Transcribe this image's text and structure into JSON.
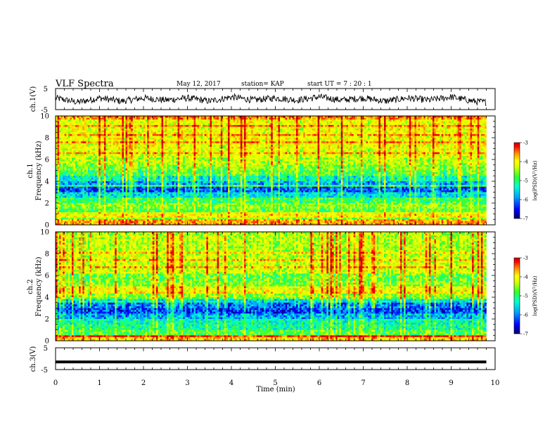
{
  "header": {
    "title": "VLF Spectra",
    "date": "May 12, 2017",
    "station": "station= KAP",
    "start": "start UT =  7 : 20 : 1"
  },
  "colors": {
    "background": "#ffffff",
    "axes": "#000000",
    "trace": "#000000",
    "colormap": [
      "#00006e",
      "#0000ff",
      "#00a0ff",
      "#00ffd0",
      "#30ff30",
      "#d8ff00",
      "#ffff00",
      "#ff9000",
      "#ff0000",
      "#c00000"
    ]
  },
  "chart_data": [
    {
      "id": "ch1-waveform",
      "type": "line",
      "ylabel": "ch.1(V)",
      "ylim": [
        -5,
        5
      ],
      "yticks": [
        "5",
        "-5"
      ],
      "xlim": [
        0,
        10
      ],
      "series": [
        {
          "x": [
            0,
            0.5,
            1,
            1.5,
            2,
            2.5,
            3,
            3.5,
            4,
            4.5,
            5,
            5.5,
            6,
            6.5,
            7,
            7.5,
            8,
            8.5,
            9,
            9.5,
            9.8
          ],
          "y": [
            0.5,
            -1.5,
            0.5,
            -1,
            0.5,
            -0.5,
            0.5,
            -1,
            1,
            -0.5,
            0.5,
            -0.5,
            1,
            -0.5,
            0.5,
            -1,
            0.5,
            -0.5,
            1,
            -1,
            -1.5
          ]
        }
      ]
    },
    {
      "id": "ch1-spectrogram",
      "type": "heatmap",
      "ylabel": "ch.1\nFrequency (kHz)",
      "xlim": [
        0,
        10
      ],
      "ylim": [
        0,
        10
      ],
      "yticks": [
        "0",
        "2",
        "4",
        "6",
        "8",
        "10"
      ],
      "data_extent_x": [
        0,
        9.8
      ],
      "colorbar": {
        "label": "log(PSD)(V²/Hz)",
        "range": [
          -7,
          -3
        ],
        "ticks": [
          "-3",
          "-4",
          "-5",
          "-6",
          "-7"
        ]
      },
      "frequency_profile_log_psd": [
        {
          "f": 0.25,
          "v": -4.0
        },
        {
          "f": 0.75,
          "v": -5.0
        },
        {
          "f": 1.25,
          "v": -5.2
        },
        {
          "f": 1.75,
          "v": -5.0
        },
        {
          "f": 2.25,
          "v": -5.3
        },
        {
          "f": 2.75,
          "v": -5.8
        },
        {
          "f": 3.25,
          "v": -6.3
        },
        {
          "f": 3.75,
          "v": -6.0
        },
        {
          "f": 4.25,
          "v": -5.6
        },
        {
          "f": 4.75,
          "v": -5.2
        },
        {
          "f": 5.25,
          "v": -5.0
        },
        {
          "f": 5.75,
          "v": -4.8
        },
        {
          "f": 6.5,
          "v": -4.6
        },
        {
          "f": 7.5,
          "v": -4.5
        },
        {
          "f": 8.5,
          "v": -4.5
        },
        {
          "f": 9.5,
          "v": -4.5
        }
      ]
    },
    {
      "id": "ch2-spectrogram",
      "type": "heatmap",
      "ylabel": "ch.2\nFrequency (kHz)",
      "xlim": [
        0,
        10
      ],
      "ylim": [
        0,
        10
      ],
      "yticks": [
        "0",
        "2",
        "4",
        "6",
        "8",
        "10"
      ],
      "data_extent_x": [
        0,
        9.8
      ],
      "colorbar": {
        "label": "log(PSD)(V²/Hz)",
        "range": [
          -7,
          -3
        ],
        "ticks": [
          "-3",
          "-4",
          "-5",
          "-6",
          "-7"
        ]
      },
      "frequency_profile_log_psd": [
        {
          "f": 0.25,
          "v": -4.2
        },
        {
          "f": 0.75,
          "v": -5.2
        },
        {
          "f": 1.25,
          "v": -5.5
        },
        {
          "f": 1.75,
          "v": -5.6
        },
        {
          "f": 2.25,
          "v": -6.0
        },
        {
          "f": 2.75,
          "v": -6.4
        },
        {
          "f": 3.25,
          "v": -6.2
        },
        {
          "f": 3.75,
          "v": -5.7
        },
        {
          "f": 4.25,
          "v": -4.9
        },
        {
          "f": 4.75,
          "v": -4.5
        },
        {
          "f": 5.25,
          "v": -5.0
        },
        {
          "f": 5.75,
          "v": -5.1
        },
        {
          "f": 6.5,
          "v": -4.7
        },
        {
          "f": 7.5,
          "v": -4.7
        },
        {
          "f": 8.5,
          "v": -4.8
        },
        {
          "f": 9.5,
          "v": -4.8
        }
      ]
    },
    {
      "id": "ch3-waveform",
      "type": "line",
      "ylabel": "ch.3(V)",
      "xlabel": "Time (min)",
      "ylim": [
        -5,
        5
      ],
      "yticks": [
        "5",
        "-5"
      ],
      "xlim": [
        0,
        10
      ],
      "xticks": [
        "0",
        "1",
        "2",
        "3",
        "4",
        "5",
        "6",
        "7",
        "8",
        "9",
        "10"
      ],
      "series": [
        {
          "x": [
            0,
            9.8
          ],
          "y": [
            -1.5,
            -1.5
          ]
        }
      ]
    }
  ]
}
